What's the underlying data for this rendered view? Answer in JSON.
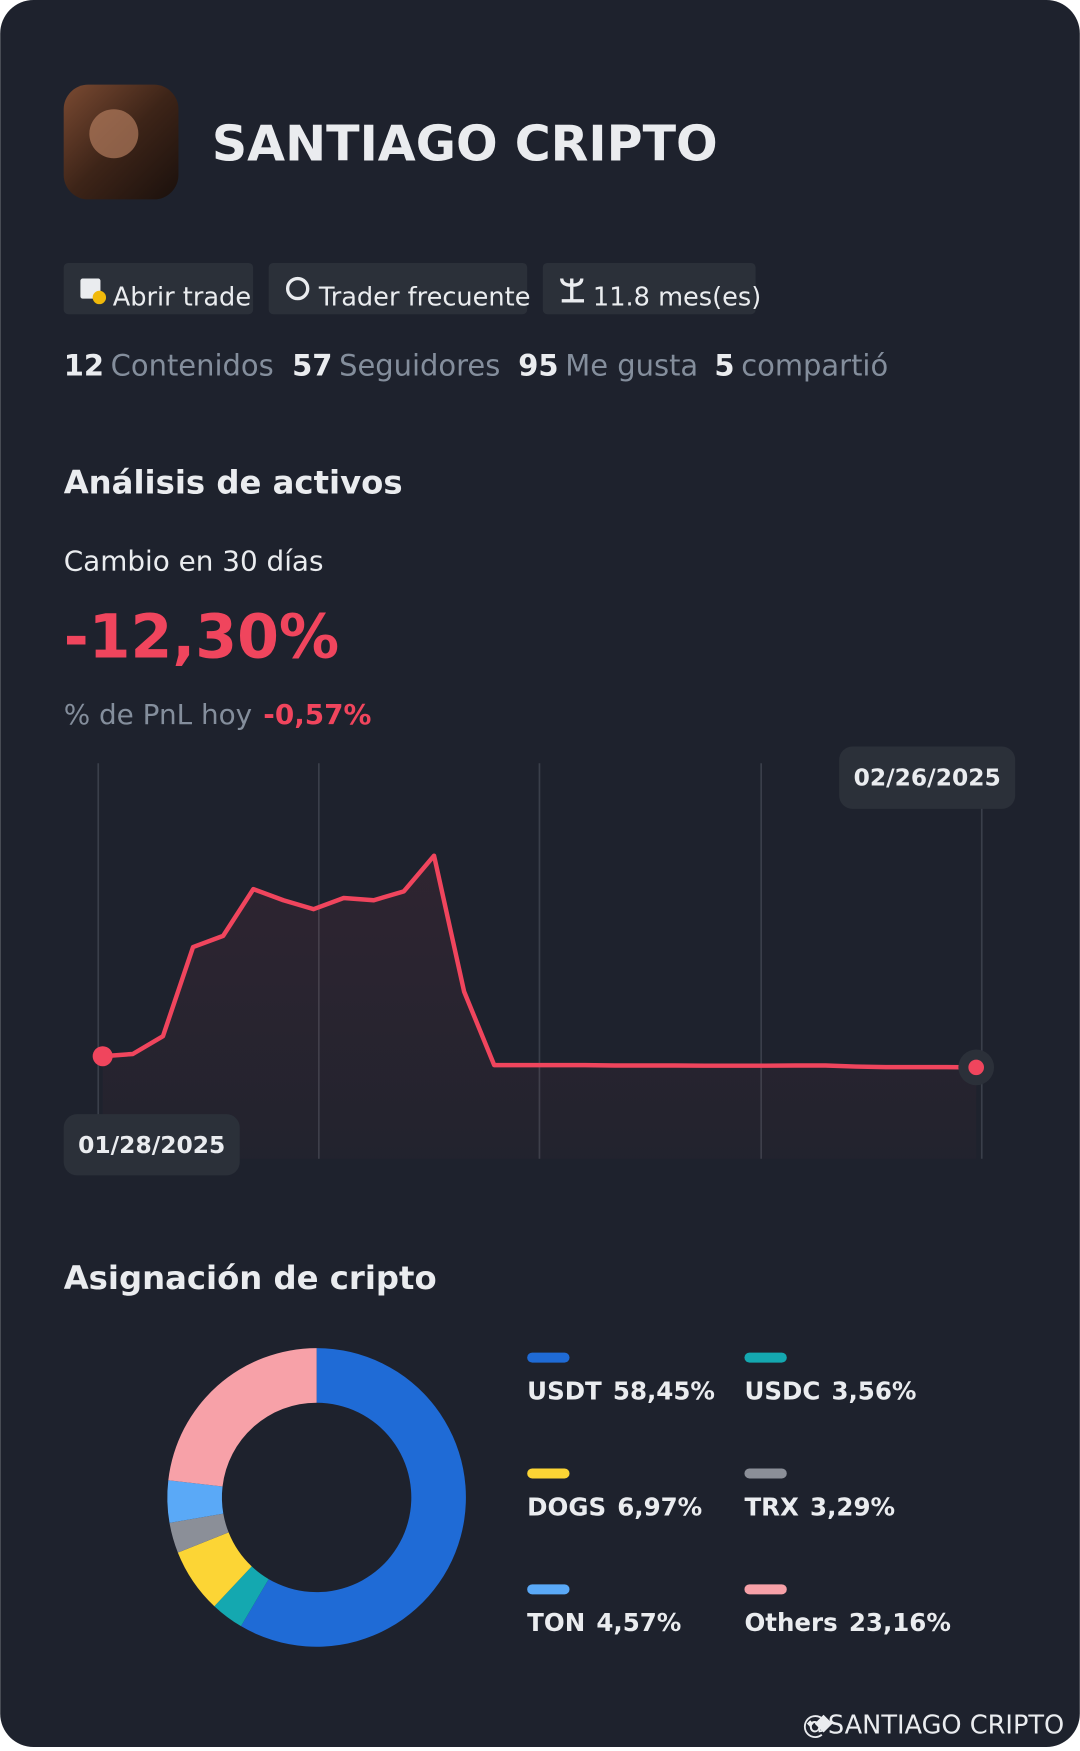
{
  "header": {
    "name": "SANTIAGO CRIPTO",
    "badges": [
      "Abrir trade",
      "Trader frecuente",
      "11.8 mes(es)"
    ]
  },
  "stats": [
    {
      "value": 12,
      "label": "Contenidos"
    },
    {
      "value": 57,
      "label": "Seguidores"
    },
    {
      "value": 95,
      "label": "Me gusta"
    },
    {
      "value": 5,
      "label": "compartió"
    }
  ],
  "analysis": {
    "title": "Análisis de activos",
    "change_label": "Cambio en 30 días",
    "change_value": "-12,30%",
    "pnl_label": "% de PnL hoy",
    "pnl_value": "-0,57%"
  },
  "chart_data": [
    {
      "type": "line",
      "start_label": "01/28/2025",
      "end_label": "02/26/2025",
      "color": "#f0455d",
      "values": [
        0,
        2.5,
        22.1,
        120.5,
        132.8,
        184.5,
        172.2,
        162.4,
        174.7,
        172.2,
        182.0,
        221.4,
        71.3,
        -9.8,
        -9.8,
        -9.8,
        -9.8,
        -10.2,
        -10.2,
        -10.2,
        -10.5,
        -10.5,
        -10.5,
        -10.2,
        -10.2,
        -11.5,
        -12.0,
        -12.0,
        -12.0,
        -12.3
      ]
    },
    {
      "type": "donut",
      "title": "Asignación de cripto",
      "categories": [
        "USDT",
        "USDC",
        "DOGS",
        "TRX",
        "TON",
        "Others"
      ],
      "values": [
        58.45,
        3.56,
        6.97,
        3.29,
        4.57,
        23.16
      ],
      "value_labels": [
        "58,45%",
        "3,56%",
        "6,97%",
        "3,29%",
        "4,57%",
        "23,16%"
      ],
      "colors": [
        "#1f6bd6",
        "#14a8b0",
        "#fcd535",
        "#8b8f98",
        "#5aa9f7",
        "#f7a1a8"
      ]
    }
  ],
  "footer": "@SANTIAGO CRIPTO"
}
